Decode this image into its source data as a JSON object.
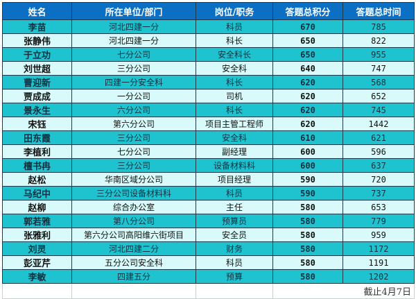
{
  "headers": [
    "姓名",
    "所在单位/部门",
    "岗位/职务",
    "答题总积分",
    "答题总时间"
  ],
  "rows": [
    [
      "李苗",
      "河北四建一分",
      "科员",
      "670",
      "785"
    ],
    [
      "张静伟",
      "河北四建一分",
      "科长",
      "650",
      "822"
    ],
    [
      "于立功",
      "七分公司",
      "安全科长",
      "650",
      "955"
    ],
    [
      "刘世超",
      "三分公司",
      "安全科",
      "640",
      "747"
    ],
    [
      "曹迎新",
      "四建一分安全科",
      "科长",
      "620",
      "568"
    ],
    [
      "贾成成",
      "一分公司",
      "司机",
      "620",
      "652"
    ],
    [
      "景永生",
      "六分公司",
      "科长",
      "620",
      "745"
    ],
    [
      "宋钰",
      "第六分公司",
      "项目主管工程师",
      "620",
      "1442"
    ],
    [
      "田东霞",
      "三分公司",
      "安全科",
      "610",
      "621"
    ],
    [
      "李植利",
      "七分公司",
      "副经理",
      "600",
      "596"
    ],
    [
      "檀书冉",
      "三分公司",
      "设备材料科",
      "600",
      "637"
    ],
    [
      "赵松",
      "华南区域分公司",
      "项目经理",
      "590",
      "720"
    ],
    [
      "马纪中",
      "三分公司设备材料科",
      "科员",
      "590",
      "737"
    ],
    [
      "赵柳",
      "综合办公室",
      "主任",
      "580",
      "653"
    ],
    [
      "郭若雅",
      "第八分公司",
      "预算员",
      "580",
      "779"
    ],
    [
      "张雅利",
      "第六分公司高阳维六街项目",
      "安全员",
      "580",
      "959"
    ],
    [
      "刘灵",
      "河北四建二分",
      "财务",
      "580",
      "1172"
    ],
    [
      "彭亚芹",
      "五分公司安全科",
      "科员",
      "580",
      "1191"
    ],
    [
      "李敏",
      "四建五分",
      "预算",
      "580",
      "1202"
    ]
  ],
  "footer_note": "截止4月7日",
  "colors": {
    "header": "#0b6fc4",
    "row_odd": "#1ec3cf",
    "row_even": "#d8fafa"
  }
}
